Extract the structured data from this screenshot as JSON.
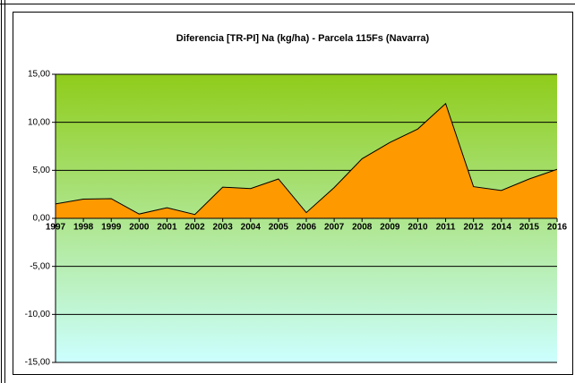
{
  "chart_data": {
    "type": "area",
    "title": "Diferencia [TR-PI] Na (kg/ha) - Parcela 115Fs (Navarra)",
    "categories": [
      "1997",
      "1998",
      "1999",
      "2000",
      "2001",
      "2002",
      "2003",
      "2004",
      "2005",
      "2006",
      "2007",
      "2008",
      "2009",
      "2010",
      "2011",
      "2012",
      "2014",
      "2015",
      "2016"
    ],
    "values": [
      1.5,
      2.0,
      2.05,
      0.45,
      1.1,
      0.4,
      3.25,
      3.1,
      4.1,
      0.6,
      3.2,
      6.2,
      7.9,
      9.3,
      11.95,
      3.3,
      2.9,
      4.1,
      5.1
    ],
    "color": "#ff9900",
    "ylim": [
      -15,
      15
    ],
    "yticks": [
      {
        "value": 15,
        "label": "15,00"
      },
      {
        "value": 10,
        "label": "10,00"
      },
      {
        "value": 5,
        "label": "5,00"
      },
      {
        "value": 0,
        "label": "0,00"
      },
      {
        "value": -5,
        "label": "-5,00"
      },
      {
        "value": -10,
        "label": "-10,00"
      },
      {
        "value": -15,
        "label": "-15,00"
      }
    ],
    "grid": true,
    "background": [
      "#8fcc1a",
      "#ccffff"
    ]
  }
}
